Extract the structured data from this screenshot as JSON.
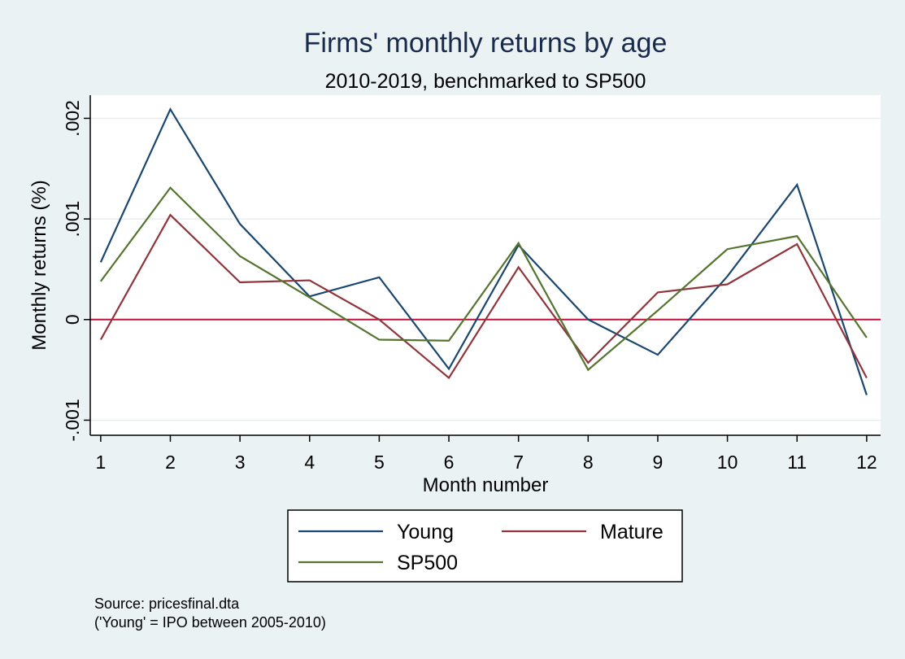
{
  "chart_data": {
    "type": "line",
    "title": "Firms' monthly returns by age",
    "subtitle": "2010-2019, benchmarked to SP500",
    "xlabel": "Month number",
    "ylabel": "Monthly returns (%)",
    "x": [
      1,
      2,
      3,
      4,
      5,
      6,
      7,
      8,
      9,
      10,
      11,
      12
    ],
    "xticks": [
      "1",
      "2",
      "3",
      "4",
      "5",
      "6",
      "7",
      "8",
      "9",
      "10",
      "11",
      "12"
    ],
    "yticks": [
      {
        "value": -0.001,
        "label": "-.001"
      },
      {
        "value": 0,
        "label": "0"
      },
      {
        "value": 0.001,
        "label": ".001"
      },
      {
        "value": 0.002,
        "label": ".002"
      }
    ],
    "xlim": [
      0.85,
      12.2
    ],
    "ylim": [
      -0.00115,
      0.00223
    ],
    "grid": true,
    "reference_line": {
      "y": 0,
      "color": "#c0143c"
    },
    "legend_position": "bottom",
    "series": [
      {
        "name": "Young",
        "color": "#1a476f",
        "values": [
          0.00057,
          0.00209,
          0.00095,
          0.00023,
          0.00042,
          -0.00049,
          0.00074,
          0.0,
          -0.00035,
          0.00043,
          0.00134,
          -0.00075
        ]
      },
      {
        "name": "Mature",
        "color": "#90353b",
        "values": [
          -0.0002,
          0.00104,
          0.00037,
          0.00039,
          0.0,
          -0.00058,
          0.00052,
          -0.00043,
          0.00027,
          0.00035,
          0.00075,
          -0.00058
        ]
      },
      {
        "name": "SP500",
        "color": "#55752f",
        "values": [
          0.00038,
          0.00131,
          0.00063,
          0.00022,
          -0.0002,
          -0.00021,
          0.00076,
          -0.0005,
          9e-05,
          0.0007,
          0.00083,
          -0.00018
        ]
      }
    ],
    "notes": [
      "Source: pricesfinal.dta",
      "('Young' = IPO between 2005-2010)"
    ]
  }
}
